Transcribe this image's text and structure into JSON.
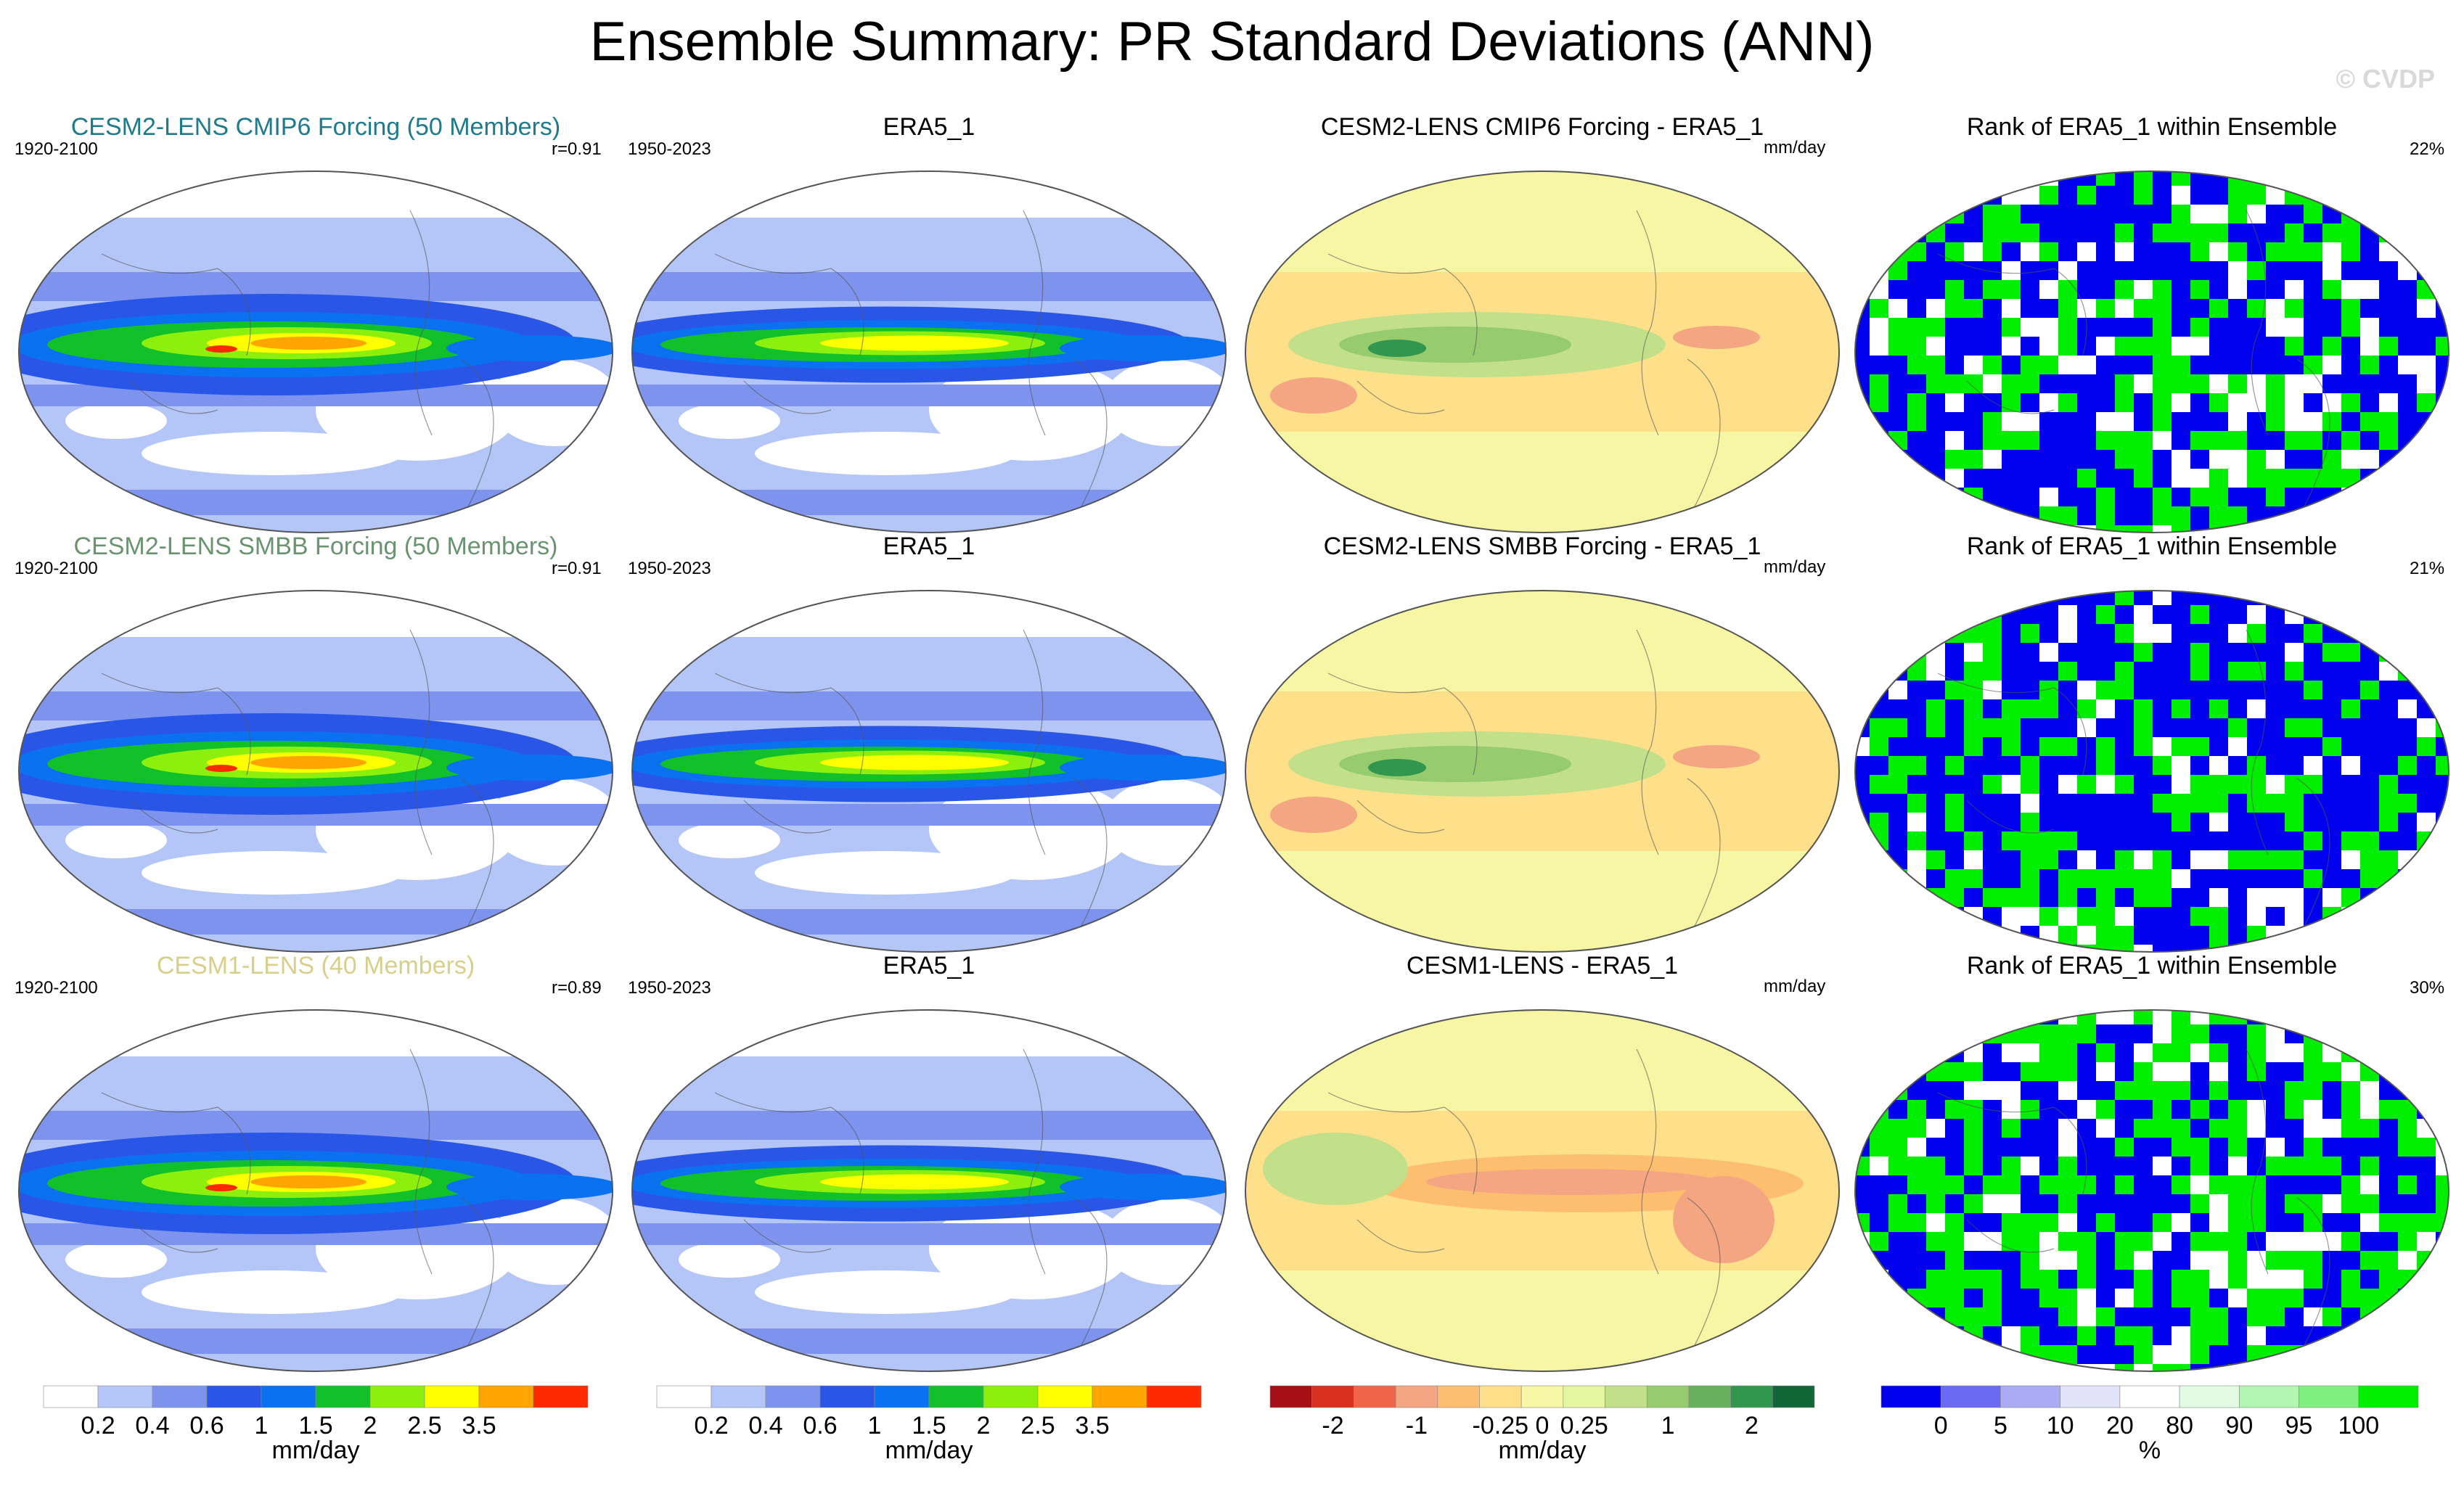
{
  "title": "Ensemble Summary: PR Standard Deviations (ANN)",
  "logo": "© CVDP",
  "rows": [
    {
      "model": {
        "label": "CESM2-LENS CMIP6 Forcing (50 Members)",
        "color": "#1f7a8c",
        "years": "1920-2100",
        "r": "r=0.91"
      },
      "obs": {
        "label": "ERA5_1",
        "years": "1950-2023"
      },
      "diff": {
        "label": "CESM2-LENS CMIP6 Forcing - ERA5_1",
        "units": "mm/day"
      },
      "rank": {
        "label": "Rank of ERA5_1 within Ensemble",
        "pct": "22%"
      }
    },
    {
      "model": {
        "label": "CESM2-LENS SMBB Forcing (50 Members)",
        "color": "#6a9470",
        "years": "1920-2100",
        "r": "r=0.91"
      },
      "obs": {
        "label": "ERA5_1",
        "years": "1950-2023"
      },
      "diff": {
        "label": "CESM2-LENS SMBB Forcing - ERA5_1",
        "units": "mm/day"
      },
      "rank": {
        "label": "Rank of ERA5_1 within Ensemble",
        "pct": "21%"
      }
    },
    {
      "model": {
        "label": "CESM1-LENS (40 Members)",
        "color": "#d8cf8a",
        "years": "1920-2100",
        "r": "r=0.89"
      },
      "obs": {
        "label": "ERA5_1",
        "years": "1950-2023"
      },
      "diff": {
        "label": "CESM1-LENS - ERA5_1",
        "units": "mm/day"
      },
      "rank": {
        "label": "Rank of ERA5_1 within Ensemble",
        "pct": "30%"
      }
    }
  ],
  "colorbars": [
    {
      "name": "std",
      "colors": [
        "#ffffff",
        "#b3c6f7",
        "#7d93ee",
        "#2a56e8",
        "#0a72f0",
        "#12c02a",
        "#8cf00c",
        "#ffff00",
        "#ffa500",
        "#ff2a00"
      ],
      "ticks": [
        "0.2",
        "0.4",
        "0.6",
        "1",
        "1.5",
        "2",
        "2.5",
        "3.5"
      ],
      "units": "mm/day"
    },
    {
      "name": "std-obs",
      "colors": [
        "#ffffff",
        "#b3c6f7",
        "#7d93ee",
        "#2a56e8",
        "#0a72f0",
        "#12c02a",
        "#8cf00c",
        "#ffff00",
        "#ffa500",
        "#ff2a00"
      ],
      "ticks": [
        "0.2",
        "0.4",
        "0.6",
        "1",
        "1.5",
        "2",
        "2.5",
        "3.5"
      ],
      "units": "mm/day"
    },
    {
      "name": "diff",
      "colors": [
        "#a50f15",
        "#d7301f",
        "#ef6548",
        "#f4a582",
        "#fdbf6f",
        "#fee08b",
        "#f7f6a4",
        "#e6f5a0",
        "#c2e08a",
        "#96cc6e",
        "#66b05e",
        "#32974e",
        "#116637"
      ],
      "ticks": [
        "-2",
        "-1",
        "-0.25",
        "0",
        "0.25",
        "1",
        "2"
      ],
      "units": "mm/day"
    },
    {
      "name": "rank",
      "colors": [
        "#0000ee",
        "#6a6af5",
        "#aaaaf5",
        "#e2e2fa",
        "#ffffff",
        "#e2fbe2",
        "#b4f5b4",
        "#7ff07f",
        "#00ee00"
      ],
      "ticks": [
        "0",
        "5",
        "10",
        "20",
        "80",
        "90",
        "95",
        "100"
      ],
      "units": "%"
    }
  ]
}
